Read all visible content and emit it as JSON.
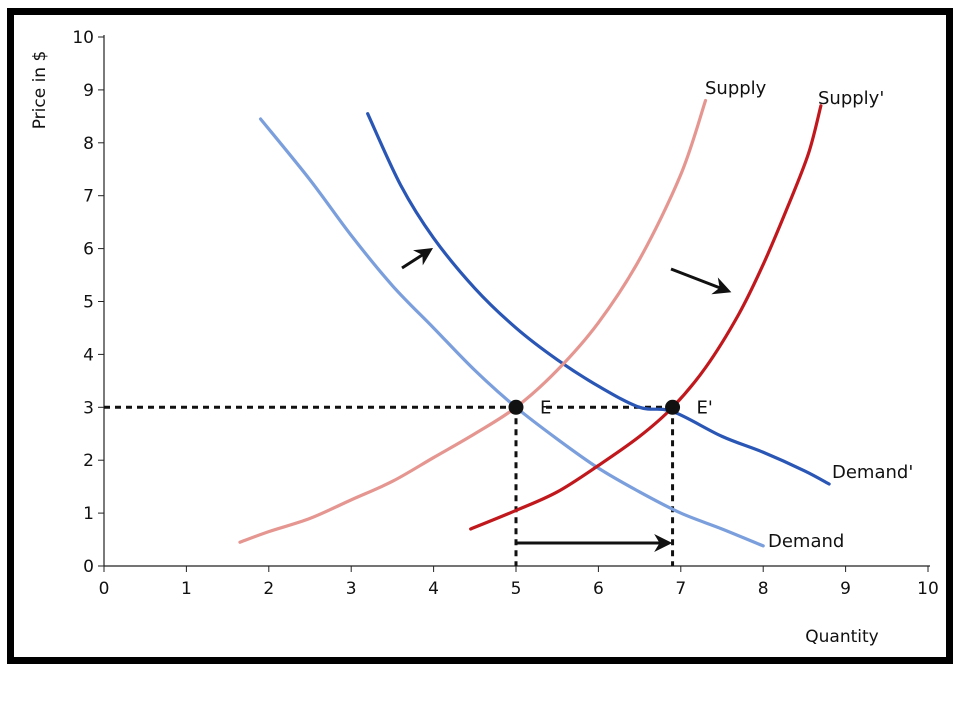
{
  "chart_data": {
    "type": "line",
    "title": "",
    "xlabel": "Quantity",
    "ylabel": "Price in $",
    "xlim": [
      0,
      10
    ],
    "ylim": [
      0,
      10
    ],
    "x_ticks": [
      "0",
      "1",
      "2",
      "3",
      "4",
      "5",
      "6",
      "7",
      "8",
      "9",
      "10"
    ],
    "y_ticks": [
      "0",
      "1",
      "2",
      "3",
      "4",
      "5",
      "6",
      "7",
      "8",
      "9",
      "10"
    ],
    "grid": false,
    "series": [
      {
        "name": "Demand",
        "color": "#7b9fdc",
        "x": [
          1.9,
          2.5,
          3,
          3.5,
          4,
          4.5,
          5,
          5.5,
          6,
          6.5,
          7,
          7.5,
          8
        ],
        "y": [
          8.45,
          7.3,
          6.25,
          5.3,
          4.5,
          3.7,
          3.0,
          2.4,
          1.85,
          1.4,
          1.0,
          0.7,
          0.38
        ]
      },
      {
        "name": "Demand'",
        "color": "#2a56b5",
        "x": [
          3.2,
          3.6,
          4,
          4.5,
          5,
          5.5,
          6,
          6.5,
          6.9,
          7.5,
          8,
          8.5,
          8.8
        ],
        "y": [
          8.55,
          7.2,
          6.2,
          5.25,
          4.5,
          3.9,
          3.4,
          3.0,
          2.92,
          2.45,
          2.15,
          1.8,
          1.55
        ]
      },
      {
        "name": "Supply",
        "color": "#e59690",
        "x": [
          1.65,
          2,
          2.5,
          3,
          3.5,
          4,
          4.5,
          5,
          5.5,
          6,
          6.5,
          7,
          7.3
        ],
        "y": [
          0.45,
          0.65,
          0.9,
          1.25,
          1.6,
          2.05,
          2.5,
          3.0,
          3.7,
          4.6,
          5.8,
          7.4,
          8.8
        ]
      },
      {
        "name": "Supply'",
        "color": "#c0181c",
        "x": [
          4.45,
          5,
          5.5,
          6,
          6.5,
          6.9,
          7.3,
          7.7,
          8,
          8.3,
          8.55,
          8.7
        ],
        "y": [
          0.7,
          1.05,
          1.4,
          1.9,
          2.45,
          3.0,
          3.75,
          4.75,
          5.7,
          6.8,
          7.8,
          8.7
        ]
      }
    ],
    "equilibria": [
      {
        "label": "E",
        "x": 5,
        "y": 3
      },
      {
        "label": "E'",
        "x": 6.9,
        "y": 3
      }
    ],
    "curve_labels": {
      "demand": "Demand",
      "demand_shift": "Demand'",
      "supply": "Supply",
      "supply_shift": "Supply'"
    }
  }
}
